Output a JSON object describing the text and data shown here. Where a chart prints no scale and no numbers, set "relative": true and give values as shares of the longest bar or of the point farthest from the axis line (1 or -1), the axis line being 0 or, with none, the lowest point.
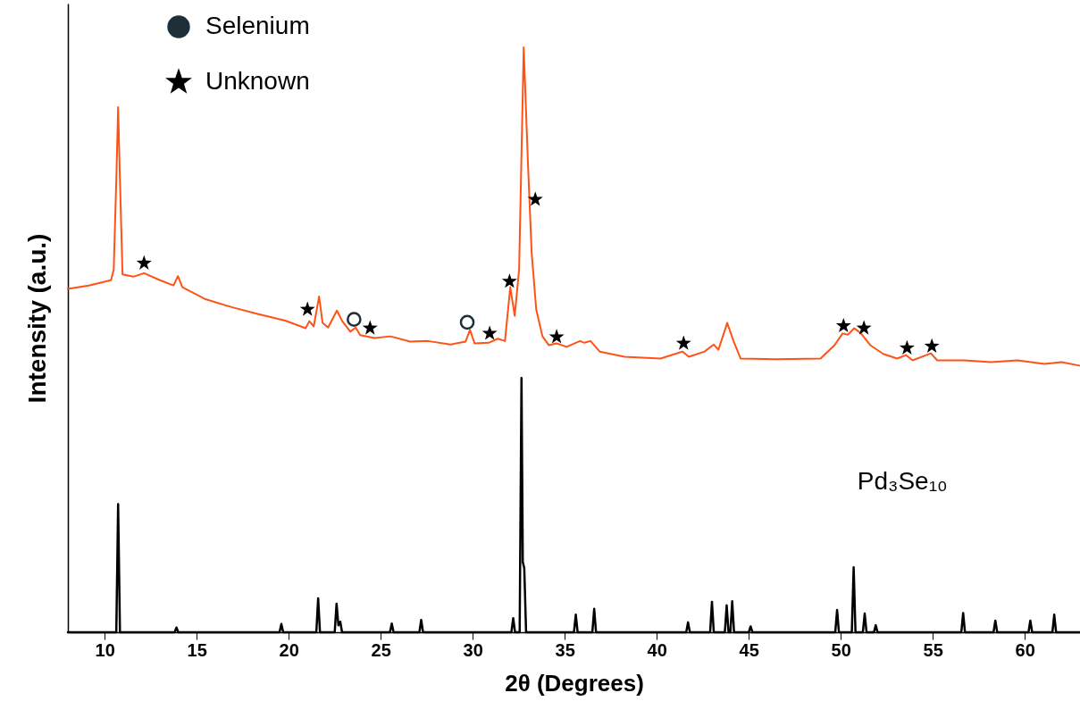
{
  "chart_data": {
    "type": "line",
    "xlabel": "2θ (Degrees)",
    "ylabel": "Intensity (a.u.)",
    "xlim": [
      8,
      63
    ],
    "xticks": [
      10,
      15,
      20,
      25,
      30,
      35,
      40,
      45,
      50,
      55,
      60
    ],
    "relative": true,
    "legend": "top left",
    "grid": false,
    "series": [
      {
        "color": "#ff5316",
        "x": [
          8,
          9.13,
          10.34,
          10.49,
          10.63,
          10.73,
          10.83,
          10.97,
          11.55,
          12.14,
          13.0,
          13.74,
          13.98,
          14.22,
          15.44,
          16.89,
          18.35,
          19.81,
          20.92,
          21.12,
          21.36,
          21.65,
          21.84,
          22.14,
          22.62,
          22.91,
          23.35,
          23.64,
          23.88,
          24.66,
          25.53,
          26.6,
          27.57,
          28.79,
          29.61,
          29.85,
          30.1,
          30.87,
          31.36,
          31.75,
          32.04,
          32.28,
          32.52,
          32.77,
          33.0,
          33.2,
          33.45,
          33.79,
          34.13,
          34.56,
          35.1,
          35.83,
          36.07,
          36.4,
          36.9,
          38.25,
          40.2,
          41.4,
          41.75,
          42.6,
          43.1,
          43.35,
          43.83,
          44.17,
          44.56,
          46.5,
          48.9,
          49.66,
          50.1,
          50.4,
          50.73,
          51.1,
          51.6,
          52.3,
          53.06,
          53.54,
          53.9,
          54.9,
          55.24,
          56.7,
          58.16,
          59.6,
          61.07,
          62.0,
          62.96
        ],
        "values": [
          0.587,
          0.593,
          0.602,
          0.62,
          0.772,
          0.898,
          0.772,
          0.612,
          0.608,
          0.614,
          0.602,
          0.593,
          0.609,
          0.59,
          0.57,
          0.556,
          0.544,
          0.533,
          0.52,
          0.532,
          0.523,
          0.574,
          0.529,
          0.521,
          0.55,
          0.532,
          0.514,
          0.521,
          0.508,
          0.503,
          0.506,
          0.497,
          0.498,
          0.492,
          0.497,
          0.517,
          0.494,
          0.495,
          0.502,
          0.498,
          0.59,
          0.541,
          0.62,
          1.0,
          0.802,
          0.65,
          0.552,
          0.506,
          0.491,
          0.494,
          0.488,
          0.498,
          0.495,
          0.498,
          0.48,
          0.471,
          0.468,
          0.48,
          0.471,
          0.48,
          0.492,
          0.483,
          0.529,
          0.498,
          0.468,
          0.467,
          0.468,
          0.491,
          0.511,
          0.509,
          0.52,
          0.511,
          0.491,
          0.476,
          0.468,
          0.474,
          0.465,
          0.477,
          0.465,
          0.465,
          0.462,
          0.465,
          0.459,
          0.462,
          0.456
        ]
      },
      {
        "name": "Pd₃Se₁₀",
        "color": "#000000",
        "x": [
          8,
          10.63,
          10.73,
          10.83,
          13.8,
          13.9,
          14.0,
          19.5,
          19.6,
          19.7,
          21.5,
          21.6,
          21.7,
          22.5,
          22.6,
          22.7,
          22.8,
          22.9,
          25.5,
          25.6,
          25.7,
          27.1,
          27.2,
          27.3,
          32.1,
          32.2,
          32.3,
          32.55,
          32.65,
          32.72,
          32.8,
          32.9,
          35.5,
          35.6,
          35.7,
          36.5,
          36.6,
          36.7,
          41.6,
          41.7,
          41.8,
          42.9,
          43.0,
          43.1,
          43.7,
          43.8,
          43.9,
          44.0,
          44.1,
          44.2,
          45.0,
          45.1,
          45.2,
          49.7,
          49.8,
          49.9,
          50.6,
          50.7,
          50.8,
          51.2,
          51.3,
          51.4,
          51.8,
          51.9,
          52.0,
          56.55,
          56.65,
          56.75,
          58.3,
          58.4,
          58.5,
          60.2,
          60.3,
          60.4,
          61.5,
          61.6,
          61.7,
          63
        ],
        "values": [
          0,
          0,
          0.219,
          0,
          0,
          0.008,
          0,
          0,
          0.014,
          0,
          0,
          0.058,
          0,
          0,
          0.049,
          0.012,
          0.018,
          0,
          0,
          0.015,
          0,
          0,
          0.021,
          0,
          0,
          0.024,
          0,
          0,
          0.435,
          0.12,
          0.11,
          0,
          0,
          0.03,
          0,
          0,
          0.04,
          0,
          0,
          0.017,
          0,
          0,
          0.052,
          0,
          0,
          0.046,
          0,
          0,
          0.053,
          0,
          0,
          0.01,
          0,
          0,
          0.038,
          0,
          0,
          0.111,
          0,
          0,
          0.032,
          0,
          0,
          0.012,
          0,
          0,
          0.033,
          0,
          0,
          0.02,
          0,
          0,
          0.02,
          0,
          0,
          0.03,
          0,
          0
        ]
      },
      {
        "name": "Selenium",
        "type": "scatter",
        "marker": "circle",
        "color": "#1f2f3a",
        "x": [
          23.55,
          29.7
        ],
        "values": [
          0.535,
          0.53
        ]
      },
      {
        "name": "Unknown",
        "type": "scatter",
        "marker": "star",
        "color": "#000000",
        "x": [
          12.14,
          21.02,
          24.42,
          30.92,
          32.0,
          33.4,
          34.56,
          41.46,
          50.15,
          51.26,
          53.6,
          54.95
        ],
        "values": [
          0.631,
          0.552,
          0.52,
          0.511,
          0.6,
          0.74,
          0.505,
          0.494,
          0.524,
          0.52,
          0.486,
          0.489
        ]
      }
    ]
  }
}
